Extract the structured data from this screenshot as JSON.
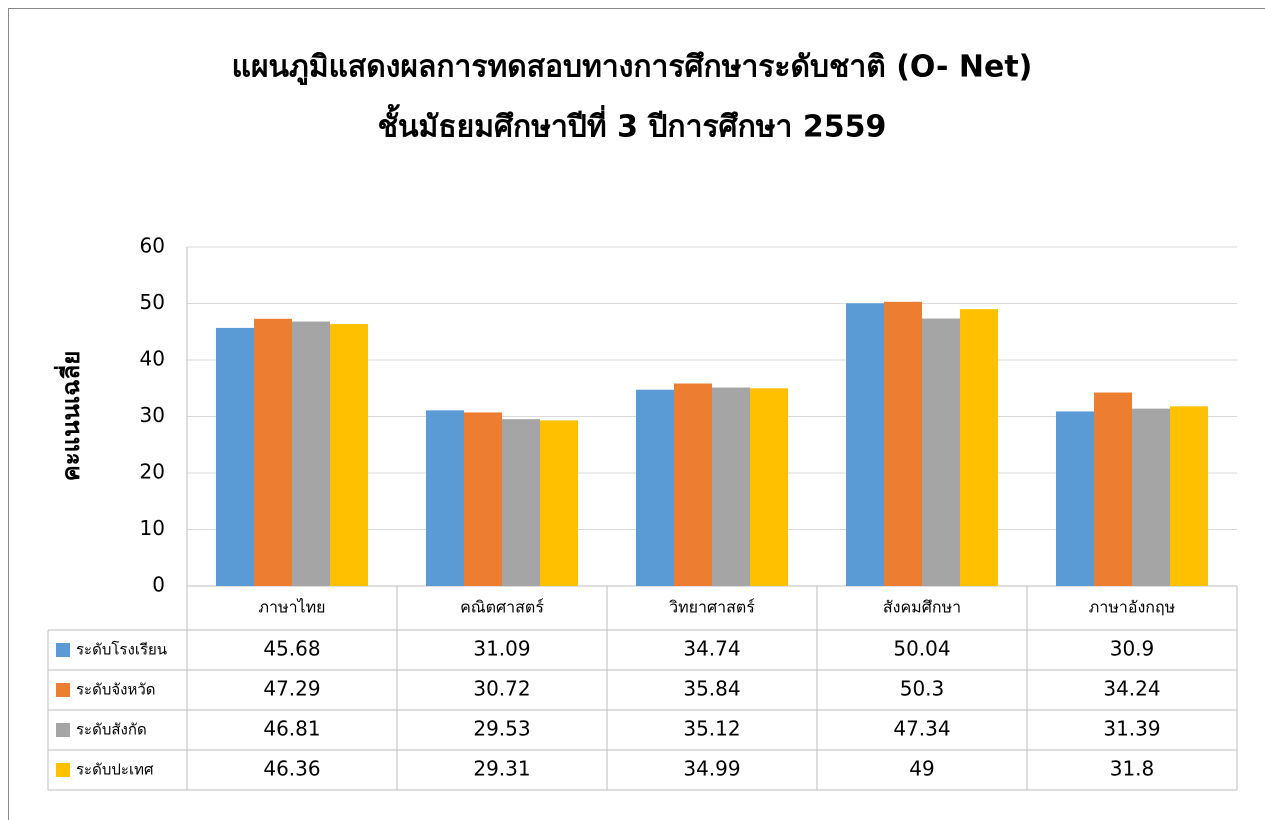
{
  "chart_data": {
    "type": "bar",
    "title": "แผนภูมิแสดงผลการทดสอบทางการศึกษาระดับชาติ (O- Net)",
    "subtitle": "ชั้นมัธยมศึกษาปีที่ 3  ปีการศึกษา 2559",
    "y_label": "คะแนนเฉลี่ย",
    "categories": [
      "ภาษาไทย",
      "คณิตศาสตร์",
      "วิทยาศาสตร์",
      "สังคมศึกษา",
      "ภาษาอังกฤษ"
    ],
    "series": [
      {
        "name": "ระดับโรงเรียน",
        "color": "#5b9bd5",
        "values": [
          45.68,
          31.09,
          34.74,
          50.04,
          30.9
        ]
      },
      {
        "name": "ระดับจังหวัด",
        "color": "#ed7d31",
        "values": [
          47.29,
          30.72,
          35.84,
          50.3,
          34.24
        ]
      },
      {
        "name": "ระดับสังกัด",
        "color": "#a5a5a5",
        "values": [
          46.81,
          29.53,
          35.12,
          47.34,
          31.39
        ]
      },
      {
        "name": "ระดับปะเทศ",
        "color": "#ffc000",
        "values": [
          46.36,
          29.31,
          34.99,
          49,
          31.8
        ]
      }
    ],
    "ylim": [
      0,
      60
    ],
    "yticks": [
      0,
      10,
      20,
      30,
      40,
      50,
      60
    ],
    "grid": true
  }
}
